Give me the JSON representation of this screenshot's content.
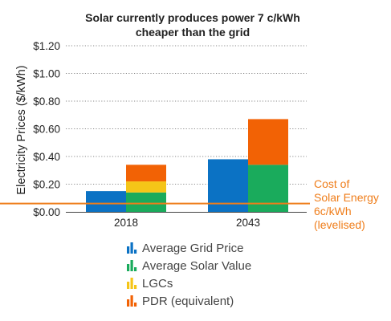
{
  "chart_data": {
    "type": "bar",
    "stacked": true,
    "title_lines": [
      "Solar currently produces power 7 c/kWh",
      "cheaper than the grid"
    ],
    "ylabel": "Electricity Prices ($/kWh)",
    "ylim": [
      0,
      1.2
    ],
    "yticks": [
      0,
      0.2,
      0.4,
      0.6,
      0.8,
      1.0,
      1.2
    ],
    "ytick_labels": [
      "$0.00",
      "$0.20",
      "$0.40",
      "$0.60",
      "$0.80",
      "$1.00",
      "$1.20"
    ],
    "grid": "horizontal dotted",
    "categories": [
      "2018",
      "2043"
    ],
    "bars": [
      {
        "category": "2018",
        "name": "Average Grid Price",
        "stack": 0,
        "color": "#0b72c4",
        "segments": [
          {
            "value": 0.15
          }
        ]
      },
      {
        "category": "2018",
        "name": "Solar",
        "stack": 1,
        "segments": [
          {
            "series": "Average Solar Value",
            "value": 0.14,
            "color": "#1aab5c"
          },
          {
            "series": "LGCs",
            "value": 0.08,
            "color": "#f5c518"
          },
          {
            "series": "PDR (equivalent)",
            "value": 0.12,
            "color": "#f26205"
          }
        ]
      },
      {
        "category": "2043",
        "name": "Average Grid Price",
        "stack": 0,
        "color": "#0b72c4",
        "segments": [
          {
            "value": 0.38
          }
        ]
      },
      {
        "category": "2043",
        "name": "Solar",
        "stack": 1,
        "segments": [
          {
            "series": "Average Solar Value",
            "value": 0.34,
            "color": "#1aab5c"
          },
          {
            "series": "LGCs",
            "value": 0.0,
            "color": "#f5c518"
          },
          {
            "series": "PDR (equivalent)",
            "value": 0.33,
            "color": "#f26205"
          }
        ]
      }
    ],
    "reference_line": {
      "value": 0.06,
      "color": "#ef7d1a",
      "label_lines": [
        "Cost of",
        "Solar Energy",
        "6c/kWh",
        "(levelised)"
      ]
    },
    "legend": {
      "placement": "bottom",
      "entries": [
        {
          "label": "Average Grid Price",
          "color": "#0b72c4"
        },
        {
          "label": "Average Solar Value",
          "color": "#1aab5c"
        },
        {
          "label": "LGCs",
          "color": "#f5c518"
        },
        {
          "label": "PDR (equivalent)",
          "color": "#f26205"
        }
      ]
    }
  }
}
